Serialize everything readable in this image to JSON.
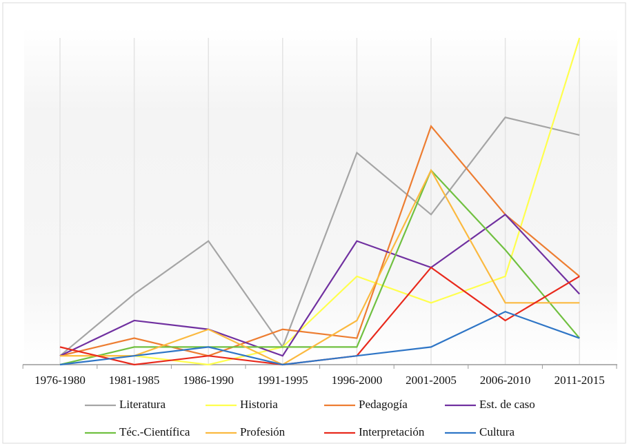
{
  "chart_data": {
    "type": "line",
    "categories": [
      "1976-1980",
      "1981-1985",
      "1986-1990",
      "1991-1995",
      "1996-2000",
      "2001-2005",
      "2006-2010",
      "2011-2015"
    ],
    "ylim": [
      0,
      37
    ],
    "series": [
      {
        "name": "Literatura",
        "color": "#a5a5a5",
        "values": [
          1,
          8,
          14,
          2,
          24,
          17,
          28,
          26
        ]
      },
      {
        "name": "Historia",
        "color": "#ffff4d",
        "values": [
          1,
          1,
          0,
          2,
          10,
          7,
          10,
          37
        ]
      },
      {
        "name": "Pedagogía",
        "color": "#ed7d31",
        "values": [
          1,
          3,
          1,
          4,
          3,
          27,
          17,
          10
        ]
      },
      {
        "name": "Est. de caso",
        "color": "#7030a0",
        "values": [
          1,
          5,
          4,
          1,
          14,
          11,
          17,
          8
        ]
      },
      {
        "name": "Téc.-Científica",
        "color": "#70c040",
        "values": [
          0,
          2,
          2,
          2,
          2,
          22,
          13,
          3
        ]
      },
      {
        "name": "Profesión",
        "color": "#fbb93f",
        "values": [
          1,
          1,
          4,
          0,
          5,
          22,
          7,
          7
        ]
      },
      {
        "name": "Interpretación",
        "color": "#e8291c",
        "values": [
          2,
          0,
          1,
          0,
          1,
          11,
          5,
          10
        ]
      },
      {
        "name": "Cultura",
        "color": "#2e75c6",
        "values": [
          0,
          1,
          2,
          0,
          1,
          2,
          6,
          3
        ]
      }
    ]
  }
}
